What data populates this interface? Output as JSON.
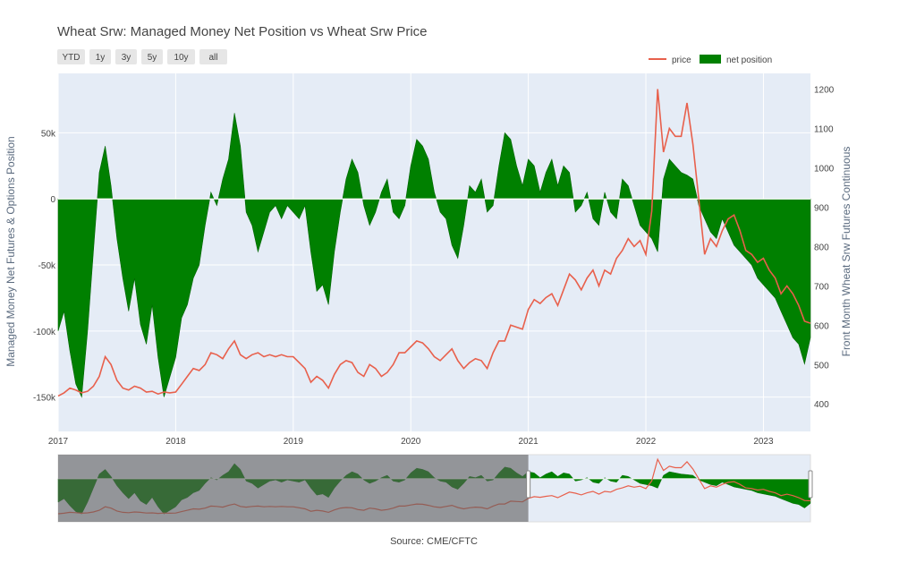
{
  "chart_data": {
    "type": "area+line",
    "title": "Wheat Srw: Managed Money Net Position vs Wheat Srw Price",
    "source": "Source: CME/CFTC",
    "ylabel_left": "Managed Money Net Futures & Options Position",
    "ylabel_right": "Front Month Wheat Srw Futures Continuous",
    "range_buttons": [
      "YTD",
      "1y",
      "3y",
      "5y",
      "10y",
      "all"
    ],
    "legend": {
      "placement": "top-right",
      "items": [
        "price",
        "net position"
      ]
    },
    "colors": {
      "price": "#e8604c",
      "net_position": "#008000",
      "plot_bg": "#e5ecf6",
      "selector_shade": "#5c5c5c"
    },
    "x_ticks": [
      "2017",
      "2018",
      "2019",
      "2020",
      "2021",
      "2022",
      "2023"
    ],
    "y_left_ticks": [
      "50k",
      "0",
      "-50k",
      "-100k",
      "-150k"
    ],
    "y_left_tick_values": [
      50000,
      0,
      -50000,
      -100000,
      -150000
    ],
    "y_left_range": [
      -176000,
      95000
    ],
    "y_right_ticks": [
      "1200",
      "1100",
      "1000",
      "900",
      "800",
      "700",
      "600",
      "500",
      "400"
    ],
    "y_right_tick_values": [
      1200,
      1100,
      1000,
      900,
      800,
      700,
      600,
      500,
      400
    ],
    "y_right_range": [
      330,
      1240
    ],
    "x_range": [
      2017.0,
      2023.4
    ],
    "range_selector_range": [
      2021.0,
      2023.4
    ],
    "series": [
      {
        "name": "net position",
        "axis": "left",
        "kind": "area",
        "x": [
          2017.0,
          2017.05,
          2017.1,
          2017.15,
          2017.2,
          2017.25,
          2017.3,
          2017.35,
          2017.4,
          2017.45,
          2017.5,
          2017.55,
          2017.6,
          2017.65,
          2017.7,
          2017.75,
          2017.8,
          2017.85,
          2017.9,
          2017.95,
          2018.0,
          2018.05,
          2018.1,
          2018.15,
          2018.2,
          2018.25,
          2018.3,
          2018.35,
          2018.4,
          2018.45,
          2018.5,
          2018.55,
          2018.6,
          2018.65,
          2018.7,
          2018.75,
          2018.8,
          2018.85,
          2018.9,
          2018.95,
          2019.0,
          2019.05,
          2019.1,
          2019.15,
          2019.2,
          2019.25,
          2019.3,
          2019.35,
          2019.4,
          2019.45,
          2019.5,
          2019.55,
          2019.6,
          2019.65,
          2019.7,
          2019.75,
          2019.8,
          2019.85,
          2019.9,
          2019.95,
          2020.0,
          2020.05,
          2020.1,
          2020.15,
          2020.2,
          2020.25,
          2020.3,
          2020.35,
          2020.4,
          2020.45,
          2020.5,
          2020.55,
          2020.6,
          2020.65,
          2020.7,
          2020.75,
          2020.8,
          2020.85,
          2020.9,
          2020.95,
          2021.0,
          2021.05,
          2021.1,
          2021.15,
          2021.2,
          2021.25,
          2021.3,
          2021.35,
          2021.4,
          2021.45,
          2021.5,
          2021.55,
          2021.6,
          2021.65,
          2021.7,
          2021.75,
          2021.8,
          2021.85,
          2021.9,
          2021.95,
          2022.0,
          2022.05,
          2022.1,
          2022.15,
          2022.2,
          2022.25,
          2022.3,
          2022.35,
          2022.4,
          2022.45,
          2022.5,
          2022.55,
          2022.6,
          2022.65,
          2022.7,
          2022.75,
          2022.8,
          2022.85,
          2022.9,
          2022.95,
          2023.0,
          2023.05,
          2023.1,
          2023.15,
          2023.2,
          2023.25,
          2023.3,
          2023.35,
          2023.4
        ],
        "values": [
          -100000,
          -85000,
          -115000,
          -140000,
          -150000,
          -100000,
          -40000,
          20000,
          40000,
          10000,
          -30000,
          -60000,
          -85000,
          -60000,
          -95000,
          -110000,
          -80000,
          -120000,
          -150000,
          -135000,
          -120000,
          -90000,
          -80000,
          -60000,
          -50000,
          -20000,
          5000,
          -5000,
          15000,
          30000,
          65000,
          40000,
          -10000,
          -20000,
          -40000,
          -25000,
          -10000,
          -5000,
          -15000,
          -5000,
          -10000,
          -15000,
          -5000,
          -40000,
          -70000,
          -65000,
          -80000,
          -40000,
          -10000,
          15000,
          30000,
          20000,
          -5000,
          -20000,
          -10000,
          5000,
          15000,
          -10000,
          -15000,
          -5000,
          25000,
          45000,
          40000,
          30000,
          5000,
          -10000,
          -15000,
          -35000,
          -45000,
          -20000,
          10000,
          5000,
          15000,
          -10000,
          -5000,
          25000,
          50000,
          45000,
          25000,
          10000,
          30000,
          25000,
          5000,
          20000,
          30000,
          10000,
          25000,
          20000,
          -10000,
          -5000,
          5000,
          -15000,
          -20000,
          5000,
          -10000,
          -15000,
          15000,
          10000,
          -5000,
          -20000,
          -25000,
          -30000,
          -40000,
          15000,
          30000,
          25000,
          20000,
          18000,
          15000,
          -5000,
          -15000,
          -25000,
          -30000,
          -15000,
          -25000,
          -35000,
          -40000,
          -45000,
          -50000,
          -60000,
          -65000,
          -70000,
          -75000,
          -85000,
          -95000,
          -105000,
          -110000,
          -125000,
          -105000
        ]
      },
      {
        "name": "price",
        "axis": "right",
        "kind": "line",
        "x": [
          2017.0,
          2017.05,
          2017.1,
          2017.15,
          2017.2,
          2017.25,
          2017.3,
          2017.35,
          2017.4,
          2017.45,
          2017.5,
          2017.55,
          2017.6,
          2017.65,
          2017.7,
          2017.75,
          2017.8,
          2017.85,
          2017.9,
          2017.95,
          2018.0,
          2018.05,
          2018.1,
          2018.15,
          2018.2,
          2018.25,
          2018.3,
          2018.35,
          2018.4,
          2018.45,
          2018.5,
          2018.55,
          2018.6,
          2018.65,
          2018.7,
          2018.75,
          2018.8,
          2018.85,
          2018.9,
          2018.95,
          2019.0,
          2019.05,
          2019.1,
          2019.15,
          2019.2,
          2019.25,
          2019.3,
          2019.35,
          2019.4,
          2019.45,
          2019.5,
          2019.55,
          2019.6,
          2019.65,
          2019.7,
          2019.75,
          2019.8,
          2019.85,
          2019.9,
          2019.95,
          2020.0,
          2020.05,
          2020.1,
          2020.15,
          2020.2,
          2020.25,
          2020.3,
          2020.35,
          2020.4,
          2020.45,
          2020.5,
          2020.55,
          2020.6,
          2020.65,
          2020.7,
          2020.75,
          2020.8,
          2020.85,
          2020.9,
          2020.95,
          2021.0,
          2021.05,
          2021.1,
          2021.15,
          2021.2,
          2021.25,
          2021.3,
          2021.35,
          2021.4,
          2021.45,
          2021.5,
          2021.55,
          2021.6,
          2021.65,
          2021.7,
          2021.75,
          2021.8,
          2021.85,
          2021.9,
          2021.95,
          2022.0,
          2022.05,
          2022.1,
          2022.15,
          2022.2,
          2022.25,
          2022.3,
          2022.35,
          2022.4,
          2022.45,
          2022.5,
          2022.55,
          2022.6,
          2022.65,
          2022.7,
          2022.75,
          2022.8,
          2022.85,
          2022.9,
          2022.95,
          2023.0,
          2023.05,
          2023.1,
          2023.15,
          2023.2,
          2023.25,
          2023.3,
          2023.35,
          2023.4
        ],
        "values": [
          420,
          428,
          440,
          435,
          428,
          432,
          445,
          470,
          520,
          500,
          460,
          440,
          435,
          445,
          440,
          430,
          432,
          425,
          430,
          428,
          430,
          450,
          470,
          490,
          485,
          500,
          530,
          525,
          515,
          540,
          560,
          525,
          515,
          525,
          530,
          520,
          525,
          520,
          525,
          520,
          520,
          505,
          490,
          455,
          470,
          460,
          440,
          475,
          500,
          510,
          505,
          480,
          470,
          500,
          490,
          470,
          480,
          500,
          530,
          530,
          545,
          560,
          555,
          540,
          520,
          510,
          525,
          540,
          510,
          490,
          505,
          515,
          510,
          490,
          530,
          560,
          560,
          600,
          595,
          590,
          640,
          665,
          655,
          670,
          680,
          650,
          690,
          730,
          715,
          690,
          720,
          740,
          700,
          740,
          730,
          770,
          790,
          820,
          800,
          815,
          780,
          890,
          1200,
          1040,
          1100,
          1080,
          1080,
          1165,
          1060,
          920,
          780,
          820,
          800,
          840,
          870,
          880,
          840,
          790,
          780,
          760,
          770,
          740,
          720,
          680,
          700,
          680,
          650,
          610,
          605
        ]
      }
    ]
  }
}
